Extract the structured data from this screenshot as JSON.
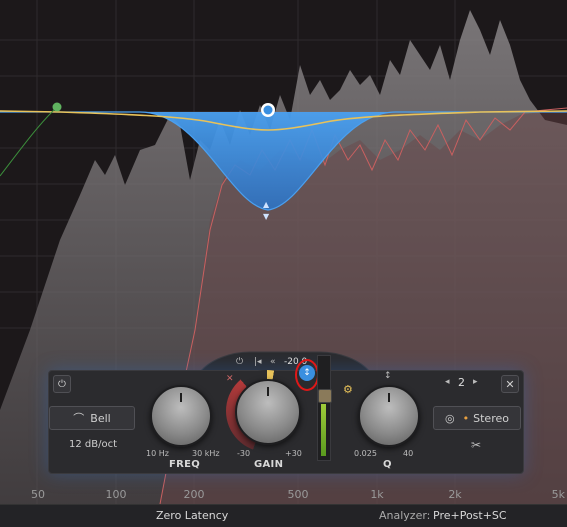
{
  "frequency_axis": {
    "ticks": [
      "50",
      "100",
      "200",
      "500",
      "1k",
      "2k",
      "5k"
    ]
  },
  "eq_band": {
    "shape": "Bell",
    "slope": "12 dB/oct",
    "freq": {
      "label": "FREQ",
      "min": "10 Hz",
      "max": "30 kHz"
    },
    "gain": {
      "label": "GAIN",
      "min": "-30",
      "max": "+30",
      "readout": "-20.0"
    },
    "q": {
      "label": "Q",
      "min": "0.025",
      "max": "40"
    },
    "band_number": "2",
    "stereo_mode": "Stereo"
  },
  "status_bar": {
    "latency": "Zero Latency",
    "analyzer_label": "Analyzer:",
    "analyzer_value": "Pre+Post+SC"
  },
  "colors": {
    "accent_blue": "#3a8fe0",
    "eq_curve_yellow": "#e8c25a",
    "pre_spectrum_red": "#c96060",
    "annotation_red": "#e01818"
  }
}
